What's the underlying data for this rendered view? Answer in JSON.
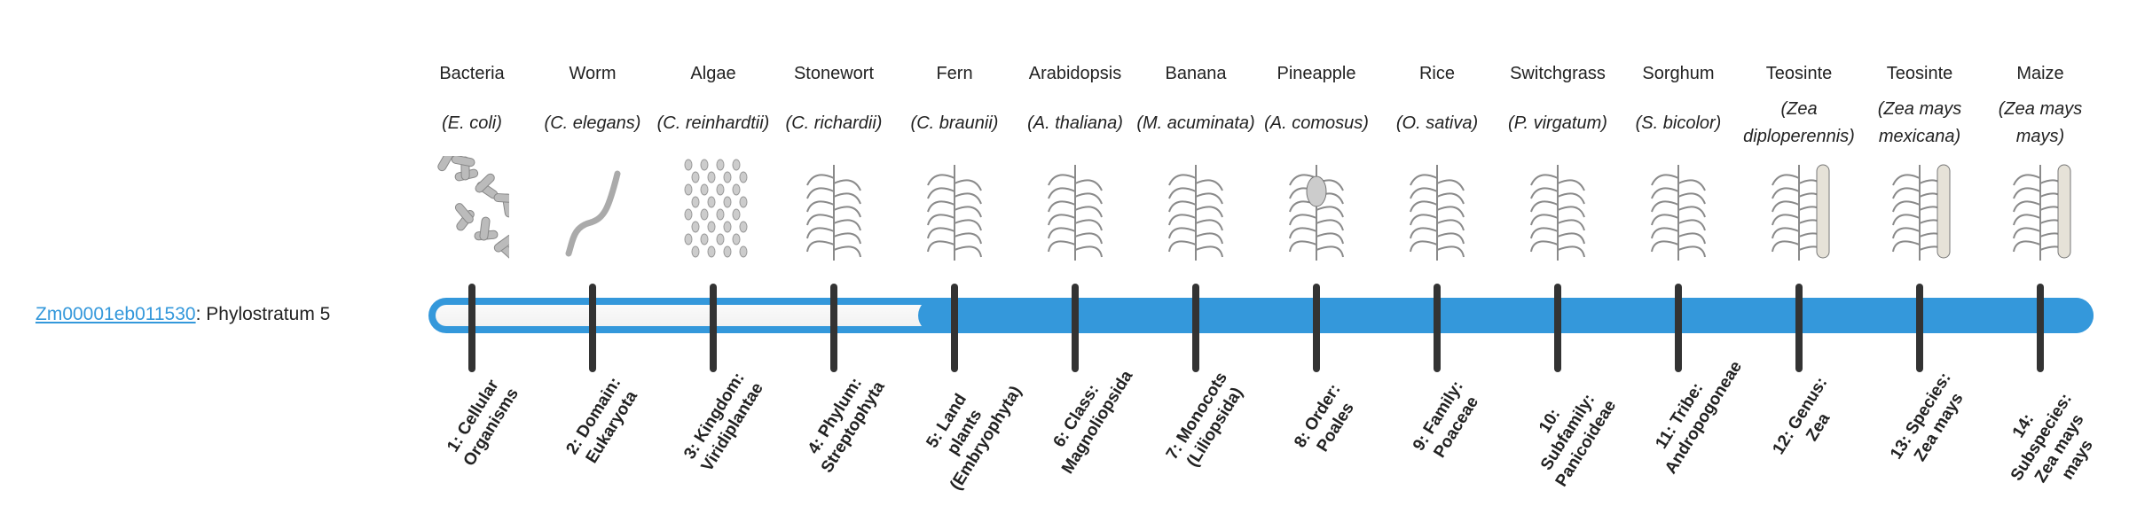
{
  "gene": {
    "id": "Zm00001eb011530",
    "suffix": ": Phylostratum 5",
    "phylostratum": 5
  },
  "colors": {
    "accent": "#3498db",
    "tick": "#333333",
    "empty": "#f7f7f7"
  },
  "strata": [
    {
      "common": "Bacteria",
      "species": "(E. coli)",
      "label": "1: Cellular Organisms",
      "icon": "bacteria-icon"
    },
    {
      "common": "Worm",
      "species": "(C. elegans)",
      "label": "2: Domain: Eukaryota",
      "icon": "worm-icon"
    },
    {
      "common": "Algae",
      "species": "(C. reinhardtii)",
      "label": "3: Kingdom: Viridiplantae",
      "icon": "algae-icon"
    },
    {
      "common": "Stonewort",
      "species": "(C. richardii)",
      "label": "4: Phylum: Streptophyta",
      "icon": "stonewort-icon"
    },
    {
      "common": "Fern",
      "species": "(C. braunii)",
      "label": "5: Land plants (Embryophyta)",
      "icon": "fern-icon"
    },
    {
      "common": "Arabidopsis",
      "species": "(A. thaliana)",
      "label": "6: Class: Magnoliopsida",
      "icon": "arabidopsis-icon"
    },
    {
      "common": "Banana",
      "species": "(M. acuminata)",
      "label": "7: Monocots (Liliopsida)",
      "icon": "banana-icon"
    },
    {
      "common": "Pineapple",
      "species": "(A. comosus)",
      "label": "8: Order: Poales",
      "icon": "pineapple-icon"
    },
    {
      "common": "Rice",
      "species": "(O. sativa)",
      "label": "9: Family: Poaceae",
      "icon": "rice-icon"
    },
    {
      "common": "Switchgrass",
      "species": "(P. virgatum)",
      "label": "10: Subfamily: Panicoideae",
      "icon": "switchgrass-icon"
    },
    {
      "common": "Sorghum",
      "species": "(S. bicolor)",
      "label": "11: Tribe: Andropogoneae",
      "icon": "sorghum-icon"
    },
    {
      "common": "Teosinte",
      "species": "(Zea diploperennis)",
      "label": "12: Genus: Zea",
      "icon": "teosinte-icon"
    },
    {
      "common": "Teosinte",
      "species": "(Zea mays mexicana)",
      "label": "13: Species: Zea mays",
      "icon": "teosinte-icon"
    },
    {
      "common": "Maize",
      "species": "(Zea mays mays)",
      "label": "14: Subspecies: Zea mays mays",
      "icon": "maize-icon"
    }
  ]
}
